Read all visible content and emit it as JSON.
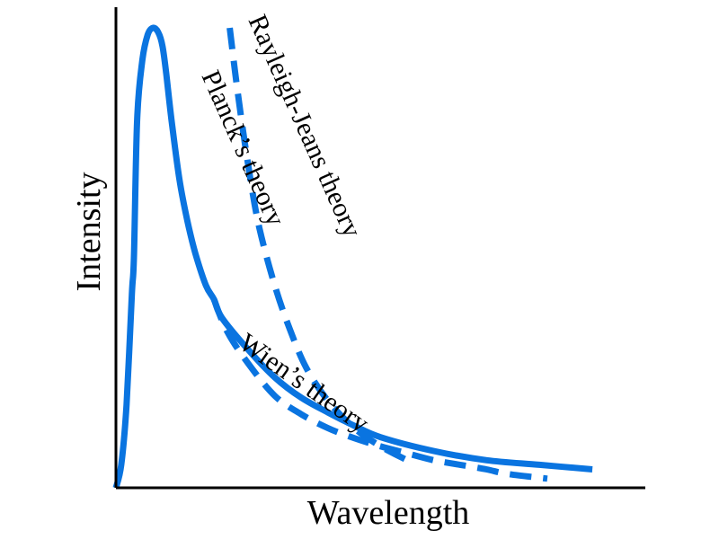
{
  "chart_data": {
    "type": "line",
    "title": "",
    "xlabel": "Wavelength",
    "ylabel": "Intensity",
    "xlim": [
      0,
      1
    ],
    "ylim": [
      0,
      1
    ],
    "ticks": "none",
    "grid": false,
    "color": "#0a74e0",
    "series": [
      {
        "name": "Planck's theory",
        "label": "Planck’s theory",
        "style": "solid",
        "x": [
          0.0,
          0.01,
          0.02,
          0.03,
          0.034,
          0.04,
          0.05,
          0.06,
          0.07,
          0.08,
          0.088,
          0.095,
          0.105,
          0.12,
          0.135,
          0.15,
          0.17,
          0.185,
          0.2,
          0.25,
          0.3,
          0.35,
          0.4,
          0.45,
          0.5,
          0.6,
          0.7,
          0.8,
          0.9
        ],
        "y": [
          0.0,
          0.05,
          0.18,
          0.42,
          0.5,
          0.8,
          0.93,
          0.985,
          1.0,
          0.99,
          0.96,
          0.9,
          0.8,
          0.67,
          0.58,
          0.51,
          0.44,
          0.41,
          0.37,
          0.3,
          0.24,
          0.196,
          0.164,
          0.135,
          0.11,
          0.08,
          0.06,
          0.05,
          0.04
        ]
      },
      {
        "name": "Rayleigh-Jeans theory",
        "label": "Rayleigh-Jeans theory",
        "style": "dashed",
        "x": [
          0.215,
          0.23,
          0.25,
          0.27,
          0.3,
          0.33,
          0.36,
          0.4,
          0.45,
          0.5,
          0.55
        ],
        "y": [
          1.0,
          0.86,
          0.7,
          0.57,
          0.44,
          0.34,
          0.26,
          0.19,
          0.13,
          0.09,
          0.06
        ]
      },
      {
        "name": "Wien's theory",
        "label": "Wien’s theory",
        "style": "dashed",
        "x": [
          0.185,
          0.21,
          0.25,
          0.3,
          0.35,
          0.4,
          0.45,
          0.5,
          0.55,
          0.6,
          0.65,
          0.7,
          0.74,
          0.815
        ],
        "y": [
          0.41,
          0.34,
          0.27,
          0.2,
          0.16,
          0.13,
          0.108,
          0.09,
          0.075,
          0.06,
          0.05,
          0.04,
          0.03,
          0.02
        ]
      }
    ]
  }
}
